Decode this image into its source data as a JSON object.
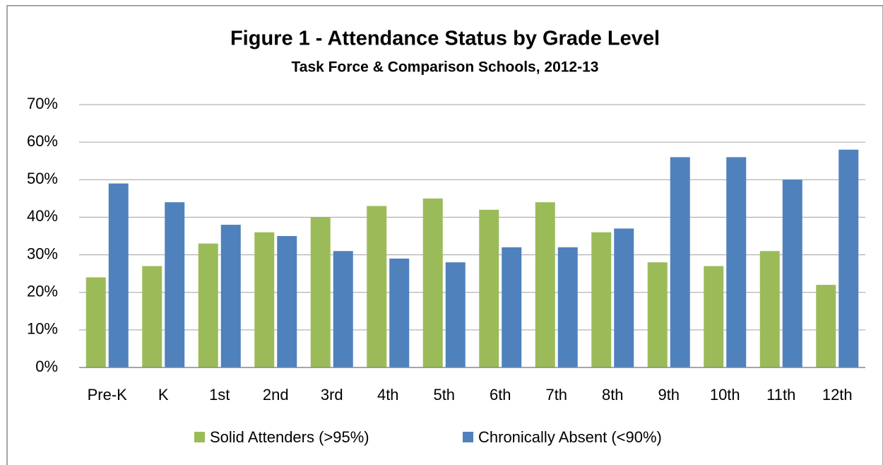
{
  "chart_data": {
    "type": "bar",
    "title": "Figure 1 - Attendance Status by Grade Level",
    "subtitle": "Task Force & Comparison Schools, 2012-13",
    "categories": [
      "Pre-K",
      "K",
      "1st",
      "2nd",
      "3rd",
      "4th",
      "5th",
      "6th",
      "7th",
      "8th",
      "9th",
      "10th",
      "11th",
      "12th"
    ],
    "series": [
      {
        "name": "Solid Attenders (>95%)",
        "color": "#9bbb59",
        "values": [
          24,
          27,
          33,
          36,
          40,
          43,
          45,
          42,
          44,
          36,
          28,
          27,
          31,
          22
        ]
      },
      {
        "name": "Chronically Absent (<90%)",
        "color": "#4f81bd",
        "values": [
          49,
          44,
          38,
          35,
          31,
          29,
          28,
          32,
          32,
          37,
          56,
          56,
          50,
          58
        ]
      }
    ],
    "ylim": [
      0,
      70
    ],
    "yticks": [
      {
        "value": 0,
        "label": "0%"
      },
      {
        "value": 10,
        "label": "10%"
      },
      {
        "value": 20,
        "label": "20%"
      },
      {
        "value": 30,
        "label": "30%"
      },
      {
        "value": 40,
        "label": "40%"
      },
      {
        "value": 50,
        "label": "50%"
      },
      {
        "value": 60,
        "label": "60%"
      },
      {
        "value": 70,
        "label": "70%"
      }
    ],
    "grid": true,
    "legend": "bottom"
  }
}
